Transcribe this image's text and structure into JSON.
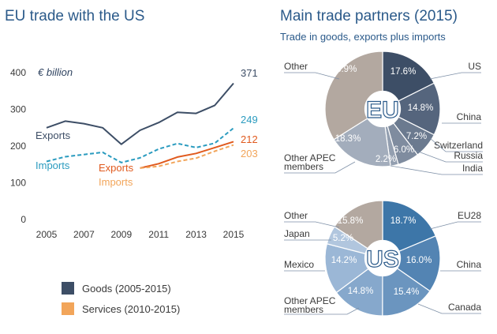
{
  "colors": {
    "goods_exports": "#3d4e66",
    "goods_imports": "#2a9bbf",
    "services_exports": "#e05a1e",
    "services_imports": "#f2a55a",
    "title": "#2b5a8a"
  },
  "left_title": "EU trade with the US",
  "right_title": "Main trade partners (2015)",
  "right_subtitle": "Trade in goods, exports plus imports",
  "chart_data": [
    {
      "type": "line",
      "title": "EU trade with the US",
      "unit_label": "€ billion",
      "x": [
        2005,
        2006,
        2007,
        2008,
        2009,
        2010,
        2011,
        2012,
        2013,
        2014,
        2015
      ],
      "xticks": [
        "2005",
        "2007",
        "2009",
        "2011",
        "2013",
        "2015"
      ],
      "yticks": [
        "0",
        "100",
        "200",
        "300",
        "400"
      ],
      "ylim": [
        0,
        400
      ],
      "series": [
        {
          "name": "Exports",
          "group": "goods",
          "style": "solid",
          "values": [
            250,
            268,
            261,
            250,
            205,
            243,
            264,
            292,
            289,
            311,
            371
          ],
          "end_label": "371"
        },
        {
          "name": "Imports",
          "group": "goods",
          "style": "dashed",
          "values": [
            158,
            171,
            177,
            183,
            155,
            168,
            192,
            207,
            196,
            208,
            249
          ],
          "end_label": "249"
        },
        {
          "name": "Exports",
          "group": "services",
          "style": "solid",
          "values": [
            null,
            null,
            null,
            null,
            null,
            140,
            152,
            170,
            180,
            196,
            212
          ],
          "end_label": "212"
        },
        {
          "name": "Imports",
          "group": "services",
          "style": "dashed",
          "values": [
            null,
            null,
            null,
            null,
            null,
            140,
            145,
            158,
            167,
            186,
            203
          ],
          "end_label": "203"
        }
      ],
      "legend": [
        {
          "label": "Goods (2005-2015)",
          "color": "#3d4e66"
        },
        {
          "label": "Services (2010-2015)",
          "color": "#f2a55a"
        }
      ]
    },
    {
      "type": "pie",
      "center_label": "EU",
      "slices": [
        {
          "name": "US",
          "value": 17.6,
          "label": "17.6%",
          "color": "#3d4e66"
        },
        {
          "name": "China",
          "value": 14.8,
          "label": "14.8%",
          "color": "#55657d"
        },
        {
          "name": "Switzerland",
          "value": 7.2,
          "label": "7.2%",
          "color": "#6b7a8f"
        },
        {
          "name": "Russia",
          "value": 6.0,
          "label": "6.0%",
          "color": "#7f8c9f"
        },
        {
          "name": "India",
          "value": 2.2,
          "label": "2.2%",
          "color": "#939fb0"
        },
        {
          "name": "Other APEC members",
          "value": 18.3,
          "label": "18.3%",
          "color": "#a3adbc"
        },
        {
          "name": "Other",
          "value": 33.9,
          "label": "33.9%",
          "color": "#b3a8a0"
        }
      ]
    },
    {
      "type": "pie",
      "center_label": "US",
      "slices": [
        {
          "name": "EU28",
          "value": 18.7,
          "label": "18.7%",
          "color": "#3d76a8"
        },
        {
          "name": "China",
          "value": 16.0,
          "label": "16.0%",
          "color": "#5384b3"
        },
        {
          "name": "Canada",
          "value": 15.4,
          "label": "15.4%",
          "color": "#6b95bf"
        },
        {
          "name": "Other APEC members",
          "value": 14.8,
          "label": "14.8%",
          "color": "#86a8cc"
        },
        {
          "name": "Mexico",
          "value": 14.2,
          "label": "14.2%",
          "color": "#9bb7d6"
        },
        {
          "name": "Japan",
          "value": 5.2,
          "label": "5.2%",
          "color": "#b1c6de"
        },
        {
          "name": "Other",
          "value": 15.8,
          "label": "15.8%",
          "color": "#b3a8a0"
        }
      ]
    }
  ]
}
